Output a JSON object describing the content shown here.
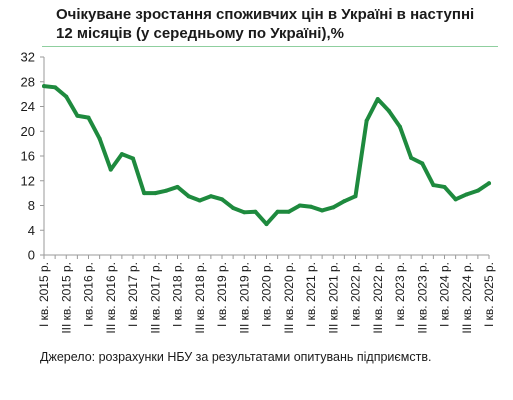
{
  "chart_data": {
    "type": "line",
    "title": "Очікуване зростання споживчих цін в Україні в наступні 12 місяців (у середньому по Україні),%",
    "source": "Джерело: розрахунки НБУ за результатами опитувань підприємств.",
    "line_color": "#1e8a3e",
    "ylim": [
      0,
      32
    ],
    "yticks": [
      "0",
      "4",
      "8",
      "12",
      "16",
      "20",
      "24",
      "28",
      "32"
    ],
    "grid": false,
    "x_labels": [
      "I кв. 2015 р.",
      "III кв. 2015 р.",
      "I кв. 2016 р.",
      "III кв. 2016 р.",
      "I кв. 2017 р.",
      "III кв. 2017 р.",
      "I кв. 2018 р.",
      "III кв. 2018 р.",
      "I кв. 2019 р.",
      "III кв. 2019 р.",
      "I кв. 2020 р.",
      "III кв. 2020 р.",
      "I кв. 2021 р.",
      "III кв. 2021 р.",
      "I кв. 2022 р.",
      "III кв. 2022 р.",
      "I кв. 2023 р.",
      "III кв. 2023 р.",
      "I кв. 2024 р.",
      "III кв. 2024 р.",
      "I кв. 2025 р."
    ],
    "values": [
      27.3,
      27.1,
      25.6,
      22.5,
      22.2,
      18.8,
      13.8,
      16.3,
      15.6,
      10.0,
      10.0,
      10.4,
      11.0,
      9.5,
      8.8,
      9.5,
      9.0,
      7.6,
      6.9,
      7.0,
      5.0,
      7.0,
      7.0,
      8.0,
      7.8,
      7.2,
      7.7,
      8.7,
      9.5,
      21.7,
      25.2,
      23.3,
      20.7,
      15.7,
      14.8,
      11.3,
      11.0,
      9.0,
      9.8,
      10.4,
      11.6
    ]
  }
}
